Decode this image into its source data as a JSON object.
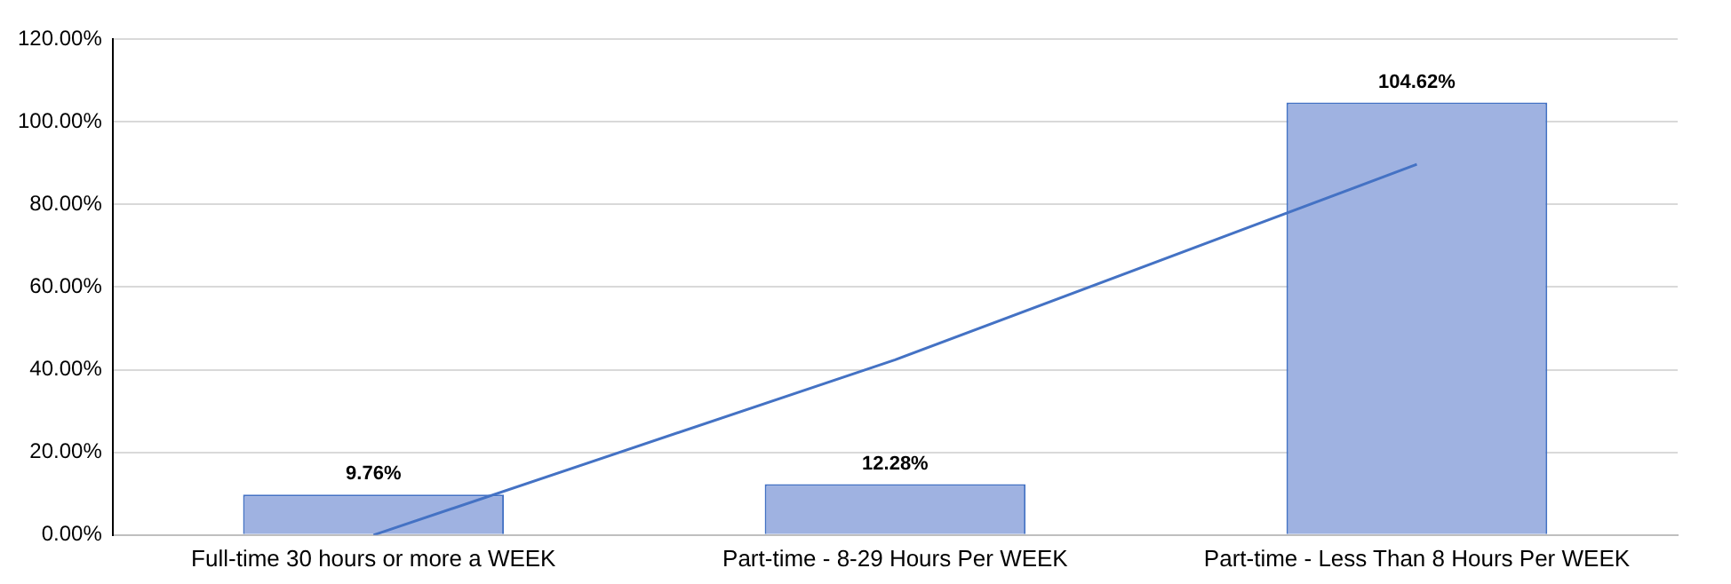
{
  "chart_data": {
    "type": "bar",
    "categories": [
      "Full-time 30 hours or more a WEEK",
      "Part-time - 8-29 Hours Per WEEK",
      "Part-time - Less Than 8 Hours Per WEEK"
    ],
    "series": [
      {
        "color": "#9fb2e1",
        "values": [
          9.76,
          12.28,
          104.62
        ],
        "value_labels": [
          "9.76%",
          "12.28%",
          "104.62%"
        ]
      },
      {
        "type": "line",
        "color": "#4472c4",
        "values": [
          0,
          42.4,
          89.7
        ]
      }
    ],
    "ylim": [
      0,
      120
    ],
    "yticks": [
      {
        "value": 0,
        "label": "0.00%"
      },
      {
        "value": 20,
        "label": "20.00%"
      },
      {
        "value": 40,
        "label": "40.00%"
      },
      {
        "value": 60,
        "label": "60.00%"
      },
      {
        "value": 80,
        "label": "80.00%"
      },
      {
        "value": 100,
        "label": "100.00%"
      },
      {
        "value": 120,
        "label": "120.00%"
      }
    ],
    "grid": "y",
    "legend": false,
    "marker": "none",
    "line_style": "solid"
  }
}
